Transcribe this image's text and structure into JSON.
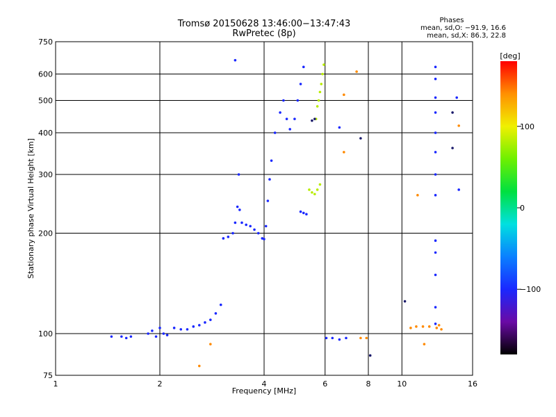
{
  "chart_data": {
    "type": "scatter",
    "title": "Tromsø 20150628 13:46:00−13:47:43",
    "subtitle": "RwPretec (8p)",
    "xlabel": "Frequency [MHz]",
    "ylabel": "Stationary phase Virtual Height [km]",
    "x_scale": "log",
    "y_scale": "log",
    "xlim": [
      1,
      16
    ],
    "ylim": [
      75,
      750
    ],
    "x_ticks": [
      1,
      2,
      4,
      6,
      8,
      10,
      16
    ],
    "y_ticks": [
      75,
      100,
      200,
      300,
      400,
      500,
      600,
      750
    ],
    "grid": true,
    "stats": {
      "header": "Phases",
      "line1": "mean, sd,O: −91.9, 16.6",
      "line2": "mean, sd,X:  86.3, 22.8"
    },
    "colorbar": {
      "label": "[deg]",
      "range": [
        -180,
        180
      ],
      "ticks": [
        {
          "value": 100,
          "label": "100"
        },
        {
          "value": 0,
          "label": "0"
        },
        {
          "value": -100,
          "label": "−100"
        }
      ],
      "colors": [
        "#000000",
        "#6a0aa5",
        "#1a28ff",
        "#0a80ff",
        "#00e0e0",
        "#00e040",
        "#6ef000",
        "#f0f000",
        "#ff9000",
        "#ff0000"
      ]
    },
    "series": [
      {
        "points": [
          [
            1.45,
            98
          ],
          [
            1.55,
            98
          ],
          [
            1.6,
            97
          ],
          [
            1.65,
            98
          ],
          [
            1.85,
            100
          ],
          [
            1.9,
            102
          ],
          [
            1.95,
            98
          ],
          [
            2.0,
            104
          ],
          [
            2.05,
            100
          ],
          [
            2.1,
            99
          ],
          [
            2.2,
            104
          ],
          [
            2.3,
            103
          ],
          [
            2.4,
            103
          ],
          [
            2.5,
            105
          ],
          [
            2.6,
            106
          ],
          [
            2.7,
            108
          ],
          [
            2.8,
            110
          ],
          [
            2.9,
            115
          ],
          [
            3.0,
            122
          ],
          [
            3.05,
            193
          ],
          [
            3.15,
            195
          ],
          [
            3.25,
            200
          ],
          [
            3.3,
            215
          ],
          [
            3.35,
            240
          ],
          [
            3.38,
            300
          ],
          [
            3.4,
            235
          ],
          [
            3.45,
            215
          ],
          [
            3.55,
            212
          ],
          [
            3.65,
            210
          ],
          [
            3.75,
            205
          ],
          [
            3.85,
            200
          ],
          [
            3.95,
            193
          ],
          [
            4.0,
            192
          ],
          [
            4.05,
            210
          ],
          [
            4.1,
            250
          ],
          [
            4.15,
            290
          ],
          [
            4.2,
            330
          ],
          [
            4.3,
            400
          ],
          [
            4.45,
            460
          ],
          [
            4.55,
            500
          ],
          [
            4.65,
            440
          ],
          [
            4.75,
            410
          ],
          [
            4.9,
            440
          ],
          [
            5.0,
            500
          ],
          [
            5.1,
            560
          ],
          [
            5.2,
            630
          ],
          [
            5.1,
            232
          ],
          [
            5.2,
            230
          ],
          [
            5.3,
            228
          ],
          [
            6.05,
            97
          ],
          [
            6.3,
            97
          ],
          [
            6.6,
            96
          ],
          [
            6.9,
            97
          ],
          [
            12.5,
            630
          ],
          [
            12.5,
            580
          ],
          [
            12.5,
            510
          ],
          [
            12.5,
            460
          ],
          [
            12.5,
            400
          ],
          [
            12.5,
            350
          ],
          [
            12.5,
            300
          ],
          [
            12.5,
            260
          ],
          [
            12.5,
            190
          ],
          [
            12.5,
            175
          ],
          [
            12.5,
            150
          ],
          [
            12.5,
            120
          ],
          [
            12.5,
            107
          ],
          [
            14.4,
            510
          ],
          [
            14.6,
            270
          ],
          [
            3.3,
            660
          ],
          [
            6.6,
            415
          ]
        ]
      },
      {
        "points": [
          [
            5.4,
            270
          ],
          [
            5.5,
            265
          ],
          [
            5.6,
            262
          ],
          [
            5.7,
            270
          ],
          [
            5.8,
            280
          ],
          [
            5.7,
            480
          ],
          [
            5.75,
            500
          ],
          [
            5.8,
            530
          ],
          [
            5.85,
            560
          ],
          [
            5.9,
            600
          ],
          [
            5.95,
            640
          ],
          [
            5.65,
            440
          ]
        ]
      },
      {
        "points": [
          [
            10.6,
            104
          ],
          [
            11.0,
            105
          ],
          [
            11.5,
            105
          ],
          [
            12.0,
            105
          ],
          [
            12.6,
            104
          ],
          [
            12.8,
            106
          ],
          [
            13.0,
            103
          ],
          [
            11.1,
            260
          ],
          [
            14.6,
            420
          ],
          [
            11.6,
            93
          ],
          [
            7.6,
            97
          ],
          [
            7.9,
            97
          ],
          [
            7.4,
            610
          ],
          [
            6.8,
            520
          ],
          [
            6.8,
            350
          ],
          [
            2.8,
            93
          ],
          [
            2.6,
            80
          ]
        ]
      },
      {
        "points": [
          [
            5.5,
            435
          ],
          [
            5.6,
            440
          ],
          [
            14.0,
            460
          ],
          [
            14.0,
            360
          ],
          [
            10.2,
            125
          ],
          [
            8.1,
            86
          ],
          [
            7.6,
            385
          ]
        ]
      }
    ]
  }
}
